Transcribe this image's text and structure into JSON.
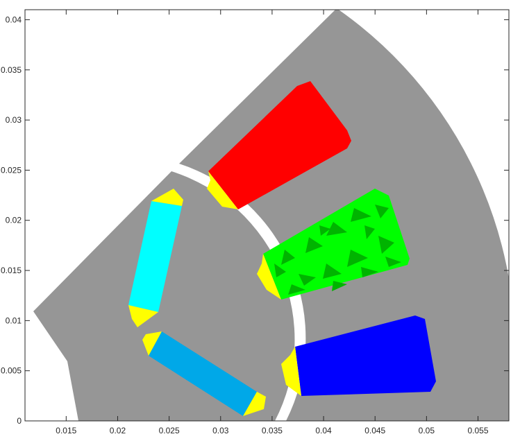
{
  "chart_data": {
    "type": "scatter",
    "title": "",
    "xlabel": "",
    "ylabel": "",
    "xlim": [
      0.011,
      0.058
    ],
    "ylim": [
      0,
      0.041
    ],
    "grid": false,
    "xticks": [
      0.015,
      0.02,
      0.025,
      0.03,
      0.035,
      0.04,
      0.045,
      0.05,
      0.055
    ],
    "xtick_labels": [
      "0.015",
      "0.02",
      "0.025",
      "0.03",
      "0.035",
      "0.04",
      "0.045",
      "0.05",
      "0.055"
    ],
    "yticks": [
      0,
      0.005,
      0.01,
      0.015,
      0.02,
      0.025,
      0.03,
      0.035,
      0.04
    ],
    "ytick_labels": [
      "0",
      "0.005",
      "0.01",
      "0.015",
      "0.02",
      "0.025",
      "0.03",
      "0.035",
      "0.04"
    ],
    "regions": [
      {
        "id": "stator-core",
        "color": "#969696"
      },
      {
        "id": "rotor-core",
        "color": "#969696"
      },
      {
        "id": "coil-red",
        "color": "#ff0000"
      },
      {
        "id": "coil-green",
        "color": "#00ff00"
      },
      {
        "id": "coil-blue",
        "color": "#0000ff"
      },
      {
        "id": "magnet-upper",
        "color": "#00ffff"
      },
      {
        "id": "magnet-lower",
        "color": "#00a8e8"
      },
      {
        "id": "slot-openings",
        "color": "#ffff00"
      }
    ]
  }
}
